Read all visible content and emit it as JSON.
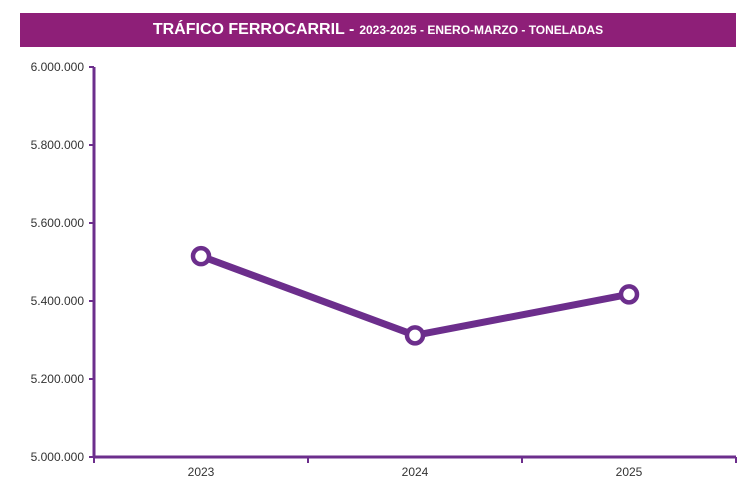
{
  "colors": {
    "header_bg": "#8e1f78",
    "series": "#6c2e8c",
    "axis": "#6c2e8c",
    "marker_fill": "#ffffff"
  },
  "chart_data": {
    "type": "line",
    "title": "TRÁFICO FERROCARRIL -",
    "subtitle": "2023-2025 - ENERO-MARZO - TONELADAS",
    "categories": [
      "2023",
      "2024",
      "2025"
    ],
    "series": [
      {
        "values": [
          5515000,
          5312000,
          5417000
        ]
      }
    ],
    "ylim": [
      5000000,
      6000000
    ],
    "yticks": [
      5000000,
      5200000,
      5400000,
      5600000,
      5800000,
      6000000
    ],
    "ytick_labels": [
      "5.000.000",
      "5.200.000",
      "5.400.000",
      "5.600.000",
      "5.800.000",
      "6.000.000"
    ],
    "xlabel": "",
    "ylabel": "",
    "grid": false,
    "legend": "none"
  }
}
